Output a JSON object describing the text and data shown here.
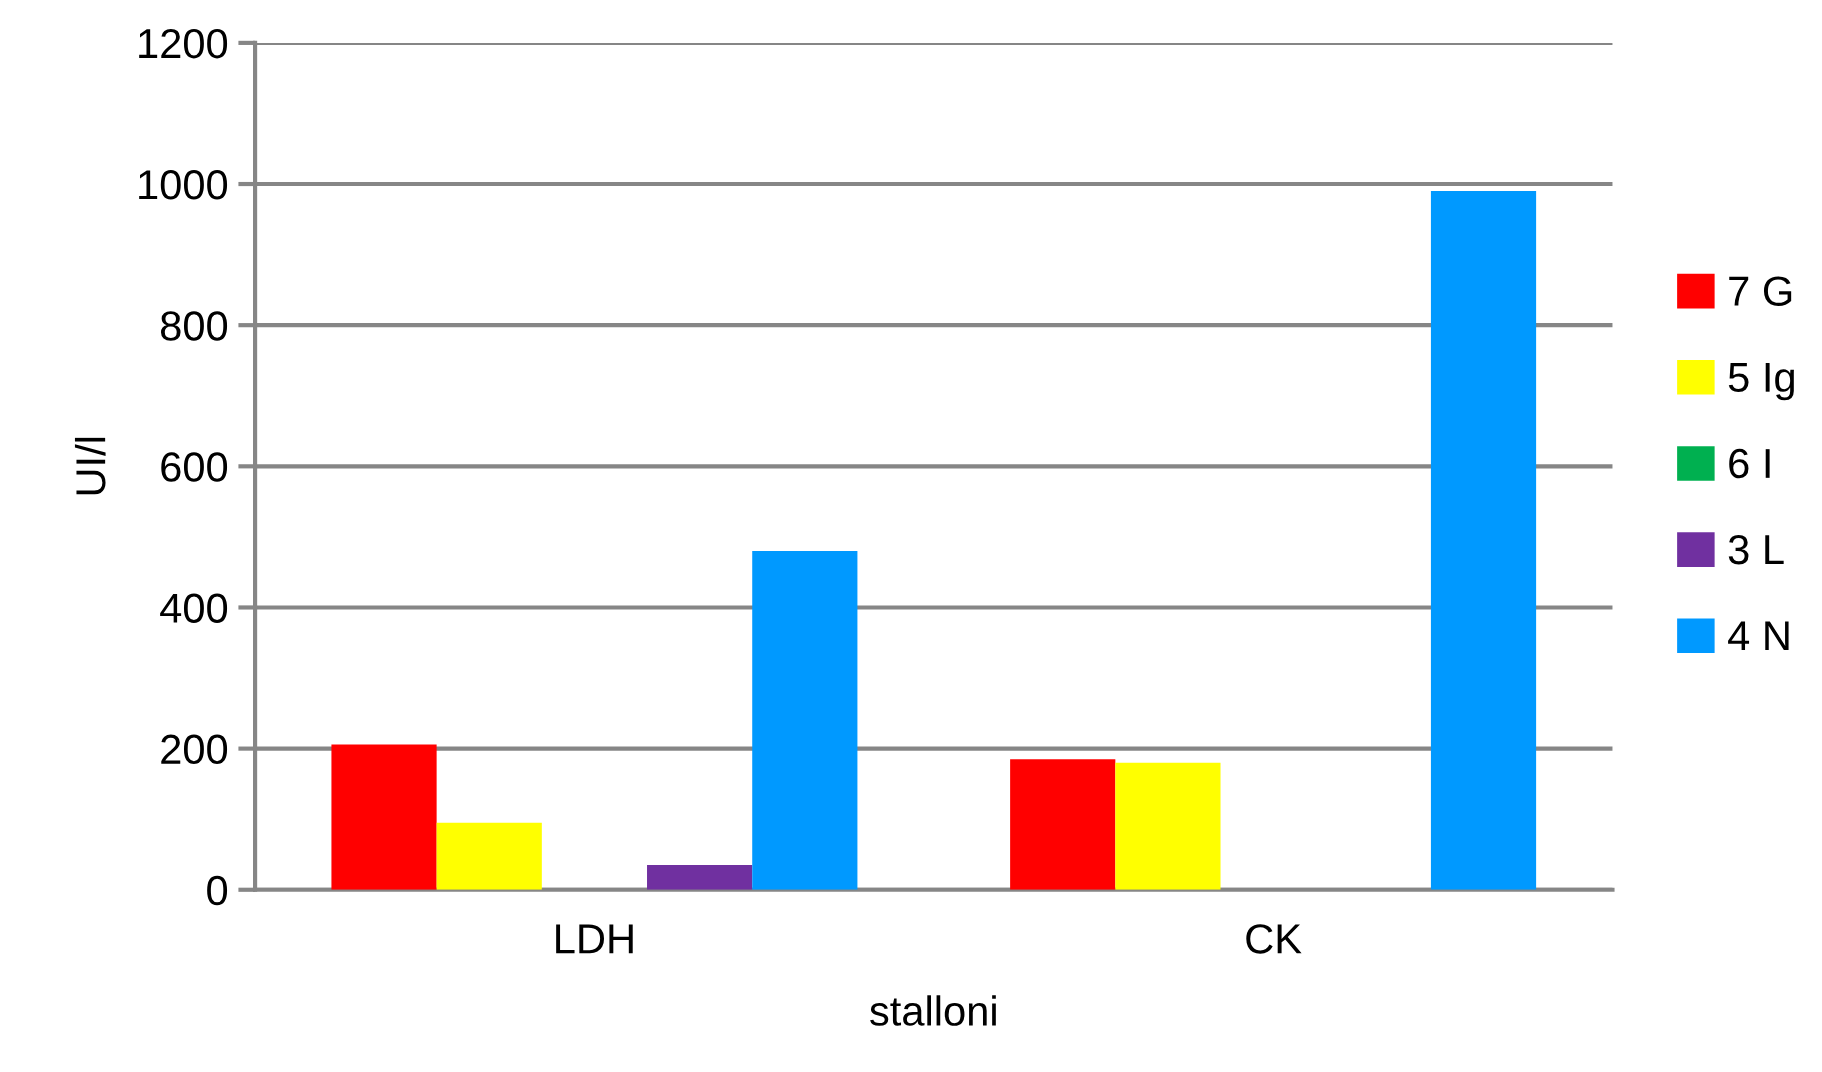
{
  "chart_data": {
    "type": "bar",
    "xlabel": "stalloni",
    "ylabel": "UI/l",
    "categories": [
      "LDH",
      "CK"
    ],
    "series": [
      {
        "name": "7 G",
        "color": "#ff0000",
        "values": [
          206,
          185
        ]
      },
      {
        "name": "5 Ig",
        "color": "#ffff00",
        "values": [
          95,
          180
        ]
      },
      {
        "name": "6 I",
        "color": "#00b050",
        "values": [
          0,
          0
        ]
      },
      {
        "name": "3 L",
        "color": "#7030a0",
        "values": [
          35,
          0
        ]
      },
      {
        "name": "4 N",
        "color": "#0099ff",
        "values": [
          480,
          990
        ]
      }
    ],
    "ylim": [
      0,
      1200
    ],
    "yticks": [
      0,
      200,
      400,
      600,
      800,
      1000,
      1200
    ],
    "grid": "y",
    "legend": "right"
  }
}
